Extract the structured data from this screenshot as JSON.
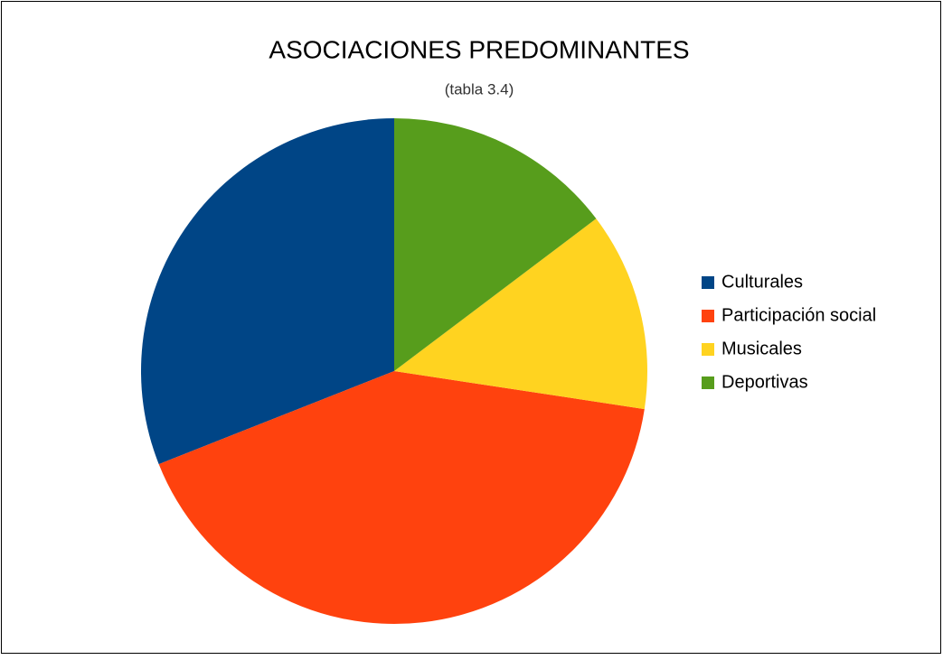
{
  "chart_data": {
    "type": "pie",
    "title": "ASOCIACIONES PREDOMINANTES",
    "subtitle": "(tabla 3.4)",
    "categories": [
      "Culturales",
      "Participación social",
      "Musicales",
      "Deportivas"
    ],
    "values": [
      31,
      41.6,
      12.7,
      14.7
    ],
    "colors": [
      "#004586",
      "#ff420e",
      "#ffd320",
      "#579d1c"
    ],
    "legend": "right"
  }
}
